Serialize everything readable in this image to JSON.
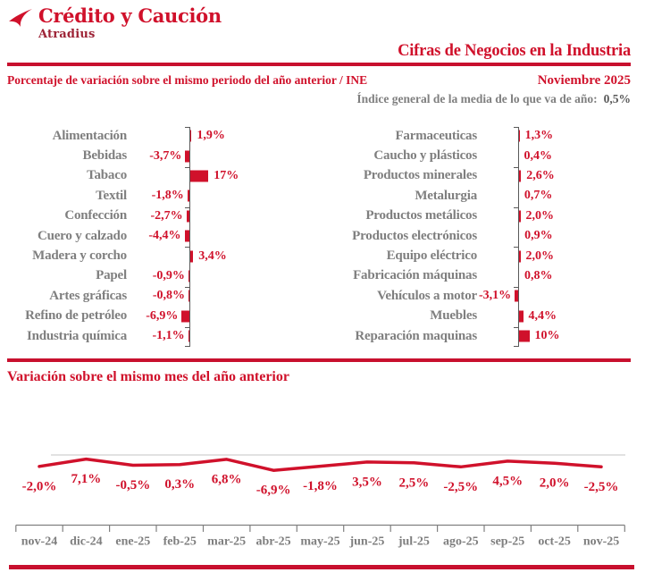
{
  "header": {
    "logo": {
      "brand": "Crédito y Caución",
      "sub": "Atradius"
    },
    "title": "Cifras de Negocios en la Industria"
  },
  "section_yoy": {
    "subtitle": "Porcentaje de variación sobre el mismo periodo del año anterior / INE",
    "period": "Noviembre 2025",
    "index_note": "Índice general de la media de lo que va de año:",
    "index_value": "0,5%"
  },
  "section_monthly": {
    "title": "Variación sobre el mismo mes del año anterior"
  },
  "colors": {
    "accent": "#D0112B",
    "rule": "#C8102E",
    "label_gray": "#7F7F7F",
    "axis_gray": "#595959",
    "grid_gray": "#D9D9D9",
    "atradius_maroon": "#9D2235"
  },
  "chart_data": [
    {
      "type": "bar",
      "orientation": "horizontal",
      "group": "left-column",
      "unit": "%",
      "title": "Porcentaje de variación sobre el mismo periodo del año anterior / INE",
      "categories": [
        "Alimentación",
        "Bebidas",
        "Tabaco",
        "Textil",
        "Confección",
        "Cuero y calzado",
        "Madera y corcho",
        "Papel",
        "Artes gráficas",
        "Refino de petróleo",
        "Industria química"
      ],
      "values": [
        1.9,
        -3.7,
        17,
        -1.8,
        -2.7,
        -4.4,
        3.4,
        -0.9,
        -0.8,
        -6.9,
        -1.1
      ],
      "labels": [
        "1,9%",
        "-3,7%",
        "17%",
        "-1,8%",
        "-2,7%",
        "-4,4%",
        "3,4%",
        "-0,9%",
        "-0,8%",
        "-6,9%",
        "-1,1%"
      ]
    },
    {
      "type": "bar",
      "orientation": "horizontal",
      "group": "right-column",
      "unit": "%",
      "title": "Porcentaje de variación sobre el mismo periodo del año anterior / INE",
      "categories": [
        "Farmaceuticas",
        "Caucho y plásticos",
        "Productos minerales",
        "Metalurgia",
        "Productos metálicos",
        "Productos electrónicos",
        "Equipo eléctrico",
        "Fabricación máquinas",
        "Vehículos a motor",
        "Muebles",
        "Reparación maquinas"
      ],
      "values": [
        1.3,
        0.4,
        2.6,
        0.7,
        2.0,
        0.9,
        2.0,
        0.8,
        -3.1,
        4.4,
        10
      ],
      "labels": [
        "1,3%",
        "0,4%",
        "2,6%",
        "0,7%",
        "2,0%",
        "0,9%",
        "2,0%",
        "0,8%",
        "-3,1%",
        "4,4%",
        "10%"
      ]
    },
    {
      "type": "line",
      "title": "Variación sobre el mismo mes del año anterior",
      "unit": "%",
      "legend": false,
      "x": [
        "nov-24",
        "dic-24",
        "ene-25",
        "feb-25",
        "mar-25",
        "abr-25",
        "may-25",
        "jun-25",
        "jul-25",
        "ago-25",
        "sep-25",
        "oct-25",
        "nov-25"
      ],
      "values": [
        -2.0,
        7.1,
        -0.5,
        0.3,
        6.8,
        -6.9,
        -1.8,
        3.5,
        2.5,
        -2.5,
        4.5,
        2.0,
        -2.5
      ],
      "labels": [
        "-2,0%",
        "7,1%",
        "-0,5%",
        "0,3%",
        "6,8%",
        "-6,9%",
        "-1,8%",
        "3,5%",
        "2,5%",
        "-2,5%",
        "4,5%",
        "2,0%",
        "-2,5%"
      ]
    }
  ]
}
